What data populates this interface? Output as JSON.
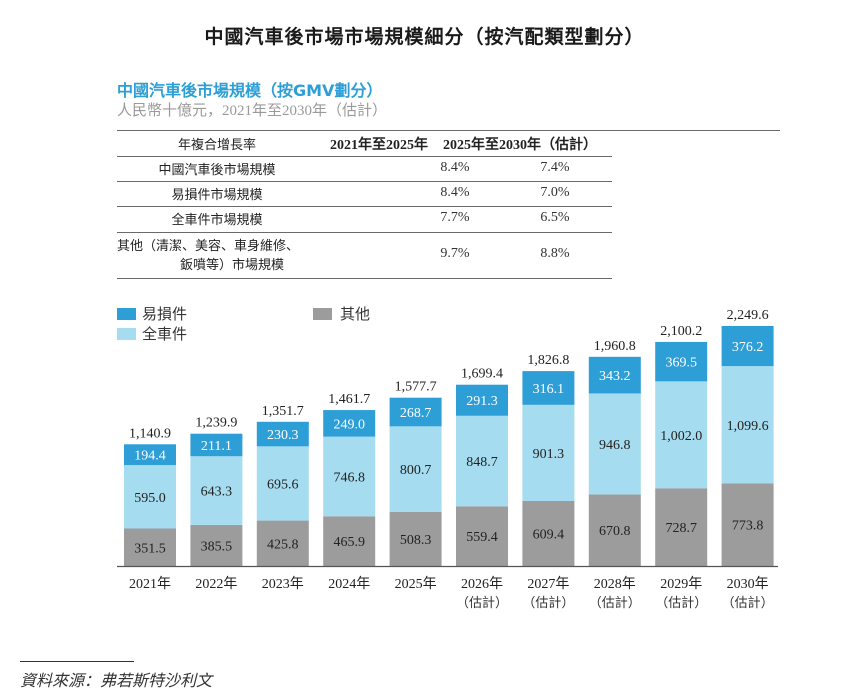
{
  "title": "中國汽車後市場市場規模細分（按汽配類型劃分）",
  "subtitle": "中國汽車後市場規模（按GMV劃分）",
  "unit_note": "人民幣十億元，2021年至2030年（估計）",
  "cagr_table": {
    "headers": [
      "年複合增長率",
      "2021年至2025年",
      "2025年至2030年（估計）"
    ],
    "rows": [
      {
        "label": "中國汽車後市場規模",
        "label2": "",
        "v1": "8.4%",
        "v2": "7.4%"
      },
      {
        "label": "易損件市場規模",
        "label2": "",
        "v1": "8.4%",
        "v2": "7.0%"
      },
      {
        "label": "全車件市場規模",
        "label2": "",
        "v1": "7.7%",
        "v2": "6.5%"
      },
      {
        "label": "其他（清潔、美容、車身維修、",
        "label2": "鈑噴等）市場規模",
        "v1": "9.7%",
        "v2": "8.8%"
      }
    ]
  },
  "colors": {
    "wear_parts": "#2E9FD6",
    "full_vehicle_parts": "#A6DCF0",
    "others": "#9C9C9C",
    "subtitle": "#2E9FD6"
  },
  "chart_data": {
    "type": "bar",
    "stacked": true,
    "title": "中國汽車後市場規模（按GMV劃分）",
    "ylabel": "人民幣十億元",
    "xlabel": "",
    "ylim": [
      0,
      2249.6
    ],
    "grid": false,
    "legend_position": "top-left",
    "categories": [
      {
        "year": "2021年",
        "note": ""
      },
      {
        "year": "2022年",
        "note": ""
      },
      {
        "year": "2023年",
        "note": ""
      },
      {
        "year": "2024年",
        "note": ""
      },
      {
        "year": "2025年",
        "note": ""
      },
      {
        "year": "2026年",
        "note": "（估計）"
      },
      {
        "year": "2027年",
        "note": "（估計）"
      },
      {
        "year": "2028年",
        "note": "（估計）"
      },
      {
        "year": "2029年",
        "note": "（估計）"
      },
      {
        "year": "2030年",
        "note": "（估計）"
      }
    ],
    "series": [
      {
        "name": "其他",
        "key": "others",
        "label_color": "#222222",
        "values": [
          351.5,
          385.5,
          425.8,
          465.9,
          508.3,
          559.4,
          609.4,
          670.8,
          728.7,
          773.8
        ],
        "labels": [
          "351.5",
          "385.5",
          "425.8",
          "465.9",
          "508.3",
          "559.4",
          "609.4",
          "670.8",
          "728.7",
          "773.8"
        ]
      },
      {
        "name": "全車件",
        "key": "full_vehicle_parts",
        "label_color": "#222222",
        "values": [
          595.0,
          643.3,
          695.6,
          746.8,
          800.7,
          848.7,
          901.3,
          946.8,
          1002.0,
          1099.6
        ],
        "labels": [
          "595.0",
          "643.3",
          "695.6",
          "746.8",
          "800.7",
          "848.7",
          "901.3",
          "946.8",
          "1,002.0",
          "1,099.6"
        ]
      },
      {
        "name": "易損件",
        "key": "wear_parts",
        "label_color": "#ffffff",
        "values": [
          194.4,
          211.1,
          230.3,
          249.0,
          268.7,
          291.3,
          316.1,
          343.2,
          369.5,
          376.2
        ],
        "labels": [
          "194.4",
          "211.1",
          "230.3",
          "249.0",
          "268.7",
          "291.3",
          "316.1",
          "343.2",
          "369.5",
          "376.2"
        ]
      }
    ],
    "totals": [
      1140.9,
      1239.9,
      1351.7,
      1461.7,
      1577.7,
      1699.4,
      1826.8,
      1960.8,
      2100.2,
      2249.6
    ],
    "total_labels": [
      "1,140.9",
      "1,239.9",
      "1,351.7",
      "1,461.7",
      "1,577.7",
      "1,699.4",
      "1,826.8",
      "1,960.8",
      "2,100.2",
      "2,249.6"
    ],
    "legend": [
      {
        "name": "易損件",
        "key": "wear_parts"
      },
      {
        "name": "全車件",
        "key": "full_vehicle_parts"
      },
      {
        "name": "其他",
        "key": "others"
      }
    ]
  },
  "source": "資料來源：弗若斯特沙利文"
}
